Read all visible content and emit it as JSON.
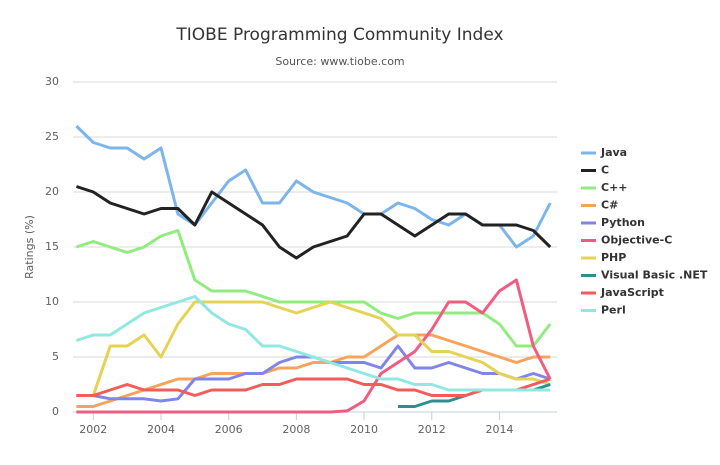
{
  "chart_data": {
    "type": "line",
    "title": "TIOBE Programming Community Index",
    "subtitle": "Source: www.tiobe.com",
    "y_label": "Ratings (%)",
    "x": [
      2001.5,
      2002,
      2002.5,
      2003,
      2003.5,
      2004,
      2004.5,
      2005,
      2005.5,
      2006,
      2006.5,
      2007,
      2007.5,
      2008,
      2008.5,
      2009,
      2009.5,
      2010,
      2010.5,
      2011,
      2011.5,
      2012,
      2012.5,
      2013,
      2013.5,
      2014,
      2014.5,
      2015,
      2015.5
    ],
    "xlim": [
      2001.4,
      2015.7
    ],
    "xticks": [
      2002,
      2004,
      2006,
      2008,
      2010,
      2012,
      2014
    ],
    "ylim": [
      0,
      30
    ],
    "yticks": [
      0,
      5,
      10,
      15,
      20,
      25,
      30
    ],
    "grid": true,
    "legend": "right",
    "series": [
      {
        "name": "Java",
        "color": "#7cb5ec",
        "values": [
          26,
          24.5,
          24,
          24,
          23,
          24,
          18,
          17,
          19,
          21,
          22,
          19,
          19,
          21,
          20,
          19.5,
          19,
          18,
          18,
          19,
          18.5,
          17.5,
          17,
          18,
          17,
          17,
          15,
          16,
          19
        ]
      },
      {
        "name": "C",
        "color": "#222222",
        "values": [
          20.5,
          20,
          19,
          18.5,
          18,
          18.5,
          18.5,
          17,
          20,
          19,
          18,
          17,
          15,
          14,
          15,
          15.5,
          16,
          18,
          18,
          17,
          16,
          17,
          18,
          18,
          17,
          17,
          17,
          16.5,
          15
        ]
      },
      {
        "name": "C++",
        "color": "#90ed7d",
        "values": [
          15,
          15.5,
          15,
          14.5,
          15,
          16,
          16.5,
          12,
          11,
          11,
          11,
          10.5,
          10,
          10,
          10,
          10,
          10,
          10,
          9,
          8.5,
          9,
          9,
          9,
          9,
          9,
          8,
          6,
          6,
          8
        ]
      },
      {
        "name": "C#",
        "color": "#f7a35c",
        "values": [
          0.5,
          0.5,
          1,
          1.5,
          2,
          2.5,
          3,
          3,
          3.5,
          3.5,
          3.5,
          3.5,
          4,
          4,
          4.5,
          4.5,
          5,
          5,
          6,
          7,
          7,
          7,
          6.5,
          6,
          5.5,
          5,
          4.5,
          5,
          5
        ]
      },
      {
        "name": "Python",
        "color": "#8085e9",
        "values": [
          1.5,
          1.5,
          1.2,
          1.2,
          1.2,
          1,
          1.2,
          3,
          3,
          3,
          3.5,
          3.5,
          4.5,
          5,
          5,
          4.5,
          4.5,
          4.5,
          4,
          6,
          4,
          4,
          4.5,
          4,
          3.5,
          3.5,
          3,
          3.5,
          3
        ]
      },
      {
        "name": "Objective-C",
        "color": "#f15c80",
        "values": [
          0,
          0,
          0,
          0,
          0,
          0,
          0,
          0,
          0,
          0,
          0,
          0,
          0,
          0,
          0,
          0,
          0.1,
          1,
          3.5,
          4.5,
          5.5,
          7.5,
          10,
          10,
          9,
          11,
          12,
          6,
          3
        ]
      },
      {
        "name": "PHP",
        "color": "#e4d354",
        "values": [
          1.5,
          1.5,
          6,
          6,
          7,
          5,
          8,
          10,
          10,
          10,
          10,
          10,
          9.5,
          9,
          9.5,
          10,
          9.5,
          9,
          8.5,
          7,
          7,
          5.5,
          5.5,
          5,
          4.5,
          3.5,
          3,
          3,
          2.5
        ]
      },
      {
        "name": "Visual Basic .NET",
        "color": "#2b908f",
        "values": [
          null,
          null,
          null,
          null,
          null,
          null,
          null,
          null,
          null,
          null,
          null,
          null,
          null,
          null,
          null,
          null,
          null,
          null,
          null,
          0.5,
          0.5,
          1,
          1,
          1.5,
          2,
          2,
          2,
          2,
          2.5
        ]
      },
      {
        "name": "JavaScript",
        "color": "#f45b5b",
        "values": [
          1.5,
          1.5,
          2,
          2.5,
          2,
          2,
          2,
          1.5,
          2,
          2,
          2,
          2.5,
          2.5,
          3,
          3,
          3,
          3,
          2.5,
          2.5,
          2,
          2,
          1.5,
          1.5,
          1.5,
          2,
          2,
          2,
          2.5,
          3
        ]
      },
      {
        "name": "Perl",
        "color": "#91e8e1",
        "values": [
          6.5,
          7,
          7,
          8,
          9,
          9.5,
          10,
          10.5,
          9,
          8,
          7.5,
          6,
          6,
          5.5,
          5,
          4.5,
          4,
          3.5,
          3,
          3,
          2.5,
          2.5,
          2,
          2,
          2,
          2,
          2,
          2,
          2
        ]
      }
    ]
  }
}
